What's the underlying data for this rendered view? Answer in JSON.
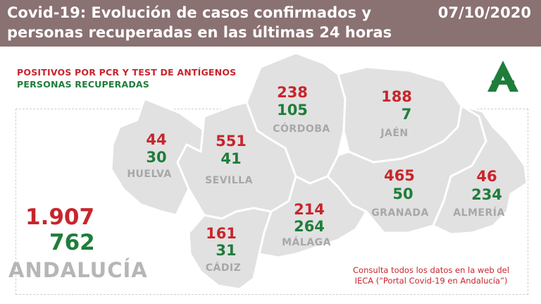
{
  "header": {
    "title": "Covid-19: Evolución de casos confirmados y personas recuperadas en las últimas 24 horas",
    "date": "07/10/2020",
    "background_color": "#8a7172"
  },
  "legend": {
    "positives_label": "POSITIVOS POR PCR Y TEST DE ANTÍGENOS",
    "recovered_label": "PERSONAS RECUPERADAS",
    "positive_color": "#c8252c",
    "recovered_color": "#1f7d3a"
  },
  "provinces": {
    "huelva": {
      "name": "HUELVA",
      "positives": "44",
      "recovered": "30"
    },
    "sevilla": {
      "name": "SEVILLA",
      "positives": "551",
      "recovered": "41"
    },
    "cordoba": {
      "name": "CÓRDOBA",
      "positives": "238",
      "recovered": "105"
    },
    "jaen": {
      "name": "JAÉN",
      "positives": "188",
      "recovered": "7"
    },
    "cadiz": {
      "name": "CÁDIZ",
      "positives": "161",
      "recovered": "31"
    },
    "malaga": {
      "name": "MÁLAGA",
      "positives": "214",
      "recovered": "264"
    },
    "granada": {
      "name": "GRANADA",
      "positives": "465",
      "recovered": "50"
    },
    "almeria": {
      "name": "ALMERÍA",
      "positives": "46",
      "recovered": "234"
    }
  },
  "total": {
    "name": "ANDALUCÍA",
    "positives": "1.907",
    "recovered": "762"
  },
  "footer": {
    "consulta_line1": "Consulta todos los datos en la web del",
    "consulta_line2": "IECA (“Portal Covid-19 en Andalucía”)"
  },
  "logo": {
    "icon": "junta-de-andalucia-logo",
    "color": "#1f7d3a"
  }
}
